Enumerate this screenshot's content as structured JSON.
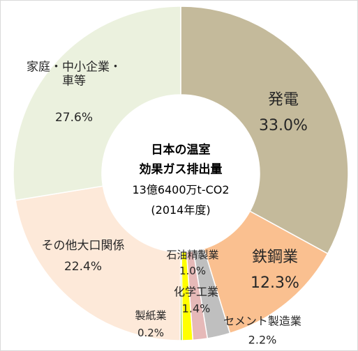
{
  "chart_data": {
    "type": "donut",
    "center_text": [
      "日本の温室",
      "効果ガス排出量",
      "13億6400万t-CO2",
      "(2014年度)"
    ],
    "categories": [
      "発電",
      "鉄鋼業",
      "セメント製造業",
      "化学工業",
      "石油精製業",
      "製紙業",
      "その他大口関係",
      "家庭・中小企業・車等"
    ],
    "values": [
      33.0,
      12.3,
      2.2,
      1.4,
      1.0,
      0.2,
      22.4,
      27.6
    ],
    "value_labels": [
      "33.0%",
      "12.3%",
      "2.2%",
      "1.4%",
      "1.0%",
      "0.2%",
      "22.4%",
      "27.6%"
    ],
    "colors": [
      "#c4ba9b",
      "#fac090",
      "#bfbfbf",
      "#e6b9b8",
      "#ffff00",
      "#92d050",
      "#fde9d9",
      "#ebf1de"
    ]
  }
}
